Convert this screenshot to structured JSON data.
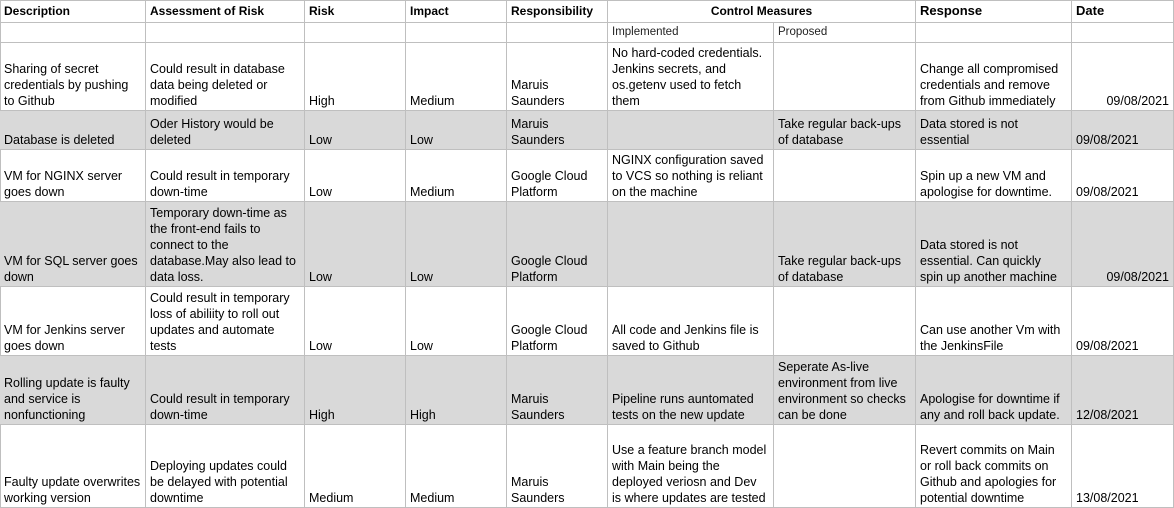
{
  "headers": {
    "description": "Description",
    "assessment": "Assessment of Risk",
    "risk": "Risk",
    "impact": "Impact",
    "responsibility": "Responsibility",
    "control_measures": "Control Measures",
    "implemented": "Implemented",
    "proposed": "Proposed",
    "response": "Response",
    "date": "Date"
  },
  "rows": [
    {
      "description": "Sharing of secret credentials by pushing to Github",
      "assessment": "Could result in database data being deleted or modified",
      "risk": "High",
      "impact": "Medium",
      "responsibility": "Maruis Saunders",
      "implemented": "No hard-coded credentials. Jenkins secrets, and os.getenv used to fetch them",
      "proposed": "",
      "response": "Change all compromised credentials and remove from Github immediately",
      "date": "09/08/2021",
      "shaded": false,
      "date_align": "right"
    },
    {
      "description": "Database is deleted",
      "assessment": "Oder History would be deleted",
      "risk": "Low",
      "impact": "Low",
      "responsibility": "Maruis Saunders",
      "implemented": "",
      "proposed": "Take regular back-ups of database",
      "response": "Data stored is not essential",
      "date": "09/08/2021",
      "shaded": true,
      "date_align": "left"
    },
    {
      "description": "VM for NGINX server goes down",
      "assessment": "Could result in temporary down-time",
      "risk": "Low",
      "impact": "Medium",
      "responsibility": "Google Cloud Platform",
      "implemented": "NGINX configuration saved to VCS so nothing is reliant on the machine",
      "proposed": "",
      "response": "Spin up a new VM and apologise for downtime.",
      "date": "09/08/2021",
      "shaded": false,
      "date_align": "left"
    },
    {
      "description": "VM for SQL server goes down",
      "assessment": "Temporary down-time as the front-end fails to connect to the database.May also lead to data loss.",
      "risk": "Low",
      "impact": "Low",
      "responsibility": "Google Cloud Platform",
      "implemented": "",
      "proposed": "Take regular back-ups of database",
      "response": "Data stored is not essential. Can quickly spin up another machine",
      "date": "09/08/2021",
      "shaded": true,
      "date_align": "right"
    },
    {
      "description": "VM for Jenkins server goes down",
      "assessment": "Could result in temporary loss of abiliity to roll out updates and automate tests",
      "risk": "Low",
      "impact": "Low",
      "responsibility": "Google Cloud Platform",
      "implemented": "All code and Jenkins file is saved to Github",
      "proposed": "",
      "response": "Can use another Vm with the JenkinsFile",
      "date": "09/08/2021",
      "shaded": false,
      "date_align": "left"
    },
    {
      "description": "Rolling update is faulty and service is nonfunctioning",
      "assessment": "Could result in temporary down-time",
      "risk": "High",
      "impact": "High",
      "responsibility": "Maruis Saunders",
      "implemented": "Pipeline runs auntomated tests on the new update",
      "proposed": "Seperate As-live environment from live environment so checks can be done",
      "response": "Apologise for downtime if any and roll back update.",
      "date": "12/08/2021",
      "shaded": true,
      "date_align": "left"
    },
    {
      "description": "Faulty update overwrites working version",
      "assessment": "Deploying updates could be delayed with potential downtime",
      "risk": "Medium",
      "impact": "Medium",
      "responsibility": "Maruis Saunders",
      "implemented": "Use a feature branch model with Main being the deployed veriosn and Dev is where updates are tested",
      "proposed": "",
      "response": "Revert commits on Main or roll back commits on Github and apologies for potential downtime",
      "date": "13/08/2021",
      "shaded": false,
      "date_align": "left"
    }
  ]
}
